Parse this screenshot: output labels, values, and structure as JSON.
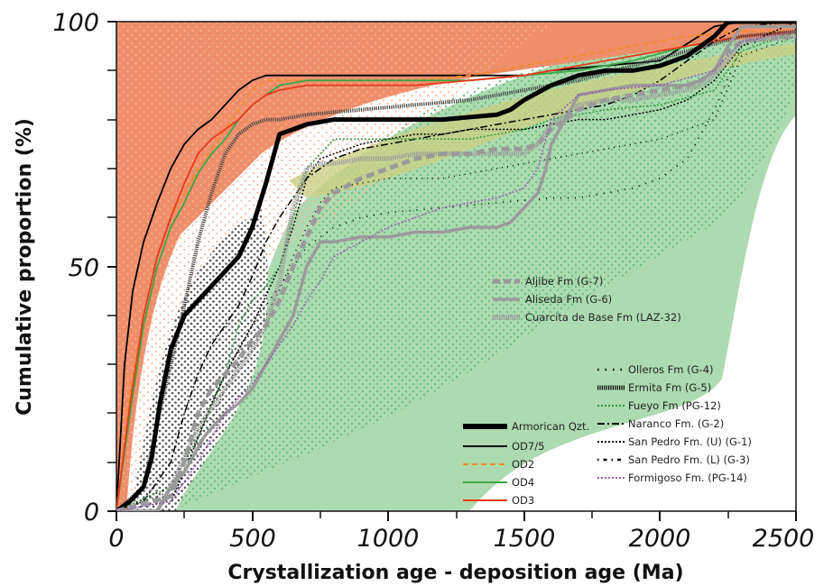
{
  "chart_data": {
    "type": "line",
    "xlabel": "Crystallization age - deposition age (Ma)",
    "ylabel": "Cumulative proportion (%)",
    "xlim": [
      0,
      2500
    ],
    "ylim": [
      0,
      100
    ],
    "x_ticks": [
      "0",
      "500",
      "1000",
      "1500",
      "2000",
      "2500"
    ],
    "y_ticks": [
      "0",
      "50",
      "100"
    ],
    "grid": false,
    "legend_position": "bottom-right (three blocks)",
    "legends": {
      "armorican": [
        {
          "name": "Armorican Qzt.",
          "color": "#000000",
          "style": "thick-solid"
        },
        {
          "name": "OD7/5",
          "color": "#000000",
          "style": "solid"
        },
        {
          "name": "OD2",
          "color": "#f28c28",
          "style": "dashed"
        },
        {
          "name": "OD4",
          "color": "#3aa845",
          "style": "solid"
        },
        {
          "name": "OD3",
          "color": "#e83a1c",
          "style": "solid"
        }
      ],
      "gray": [
        {
          "name": "Aljibe Fm (G-7)",
          "color": "#9a9a9a",
          "style": "thick-dashed"
        },
        {
          "name": "Aliseda Fm (G-6)",
          "color": "#9a9a9a",
          "style": "thick-solid"
        },
        {
          "name": "Cuarcita de Base Fm (LAZ-32)",
          "color": "#9a9a9a",
          "style": "hatched"
        }
      ],
      "cantabrian": [
        {
          "name": "Olleros Fm (G-4)",
          "color": "#000000",
          "style": "sparse-dotted"
        },
        {
          "name": "Ermita Fm (G-5)",
          "color": "#000000",
          "style": "hatched"
        },
        {
          "name": "Fueyo Fm (PG-12)",
          "color": "#3aa845",
          "style": "dotted"
        },
        {
          "name": "Naranco Fm. (G-2)",
          "color": "#000000",
          "style": "dash-dot"
        },
        {
          "name": "San Pedro Fm. (U) (G-1)",
          "color": "#000000",
          "style": "dotted"
        },
        {
          "name": "San Pedro Fm. (L) (G-3)",
          "color": "#000000",
          "style": "dot-dash"
        },
        {
          "name": "Formigoso Fm. (PG-14)",
          "color": "#9b59b6",
          "style": "dotted"
        }
      ]
    },
    "series": [
      {
        "name": "OD7/5",
        "color": "#000000",
        "width": 1.8,
        "dash": "",
        "x": [
          0,
          30,
          60,
          100,
          150,
          200,
          250,
          300,
          350,
          400,
          450,
          500,
          550,
          600,
          700,
          800,
          1000,
          1200,
          1400,
          1500,
          1600,
          1800,
          2000,
          2200,
          2300,
          2500
        ],
        "y": [
          0,
          30,
          45,
          55,
          63,
          70,
          75,
          78,
          80,
          83,
          86,
          88,
          89,
          89,
          89,
          89,
          89,
          89,
          89,
          89,
          90,
          91,
          92,
          99,
          100,
          100
        ]
      },
      {
        "name": "OD2",
        "color": "#f28c28",
        "width": 1.8,
        "dash": "6,4",
        "x": [
          0,
          50,
          100,
          150,
          200,
          250,
          300,
          350,
          400,
          450,
          500,
          550,
          600,
          700,
          900,
          1100,
          1300,
          1500,
          1700,
          1900,
          2100,
          2300,
          2500
        ],
        "y": [
          0,
          25,
          40,
          52,
          60,
          65,
          70,
          74,
          78,
          82,
          86,
          88,
          88,
          88,
          88,
          88,
          89,
          91,
          93,
          95,
          97,
          98,
          98
        ]
      },
      {
        "name": "OD4",
        "color": "#3aa845",
        "width": 1.8,
        "dash": "",
        "x": [
          0,
          50,
          100,
          150,
          200,
          250,
          300,
          350,
          400,
          450,
          500,
          550,
          600,
          700,
          900,
          1100,
          1300,
          1500,
          1700,
          1900,
          2100,
          2300,
          2500
        ],
        "y": [
          0,
          20,
          38,
          50,
          58,
          63,
          69,
          73,
          76,
          80,
          83,
          85,
          87,
          88,
          88,
          88,
          88,
          89,
          90,
          92,
          95,
          97,
          98
        ]
      },
      {
        "name": "OD3",
        "color": "#e83a1c",
        "width": 1.8,
        "dash": "",
        "x": [
          0,
          50,
          100,
          150,
          200,
          250,
          300,
          350,
          400,
          450,
          500,
          550,
          600,
          700,
          900,
          1100,
          1300,
          1500,
          1700,
          1900,
          2100,
          2300,
          2500
        ],
        "y": [
          0,
          22,
          40,
          52,
          60,
          67,
          73,
          76,
          78,
          80,
          83,
          85,
          86,
          87,
          87,
          87,
          88,
          89,
          91,
          93,
          95,
          97,
          98
        ]
      },
      {
        "name": "Ermita Fm (G-5)",
        "color": "#444444",
        "width": 4,
        "dash": "1.2,1.2",
        "x": [
          0,
          100,
          150,
          200,
          250,
          300,
          350,
          400,
          450,
          500,
          550,
          600,
          700,
          900,
          1100,
          1300,
          1500,
          1700,
          1900,
          2100,
          2300,
          2500
        ],
        "y": [
          0,
          5,
          18,
          30,
          42,
          55,
          65,
          73,
          77,
          79,
          80,
          80,
          81,
          82,
          83,
          84,
          86,
          88,
          91,
          94,
          97,
          98
        ]
      },
      {
        "name": "Armorican Qzt.",
        "color": "#000000",
        "width": 5,
        "dash": "",
        "x": [
          0,
          50,
          100,
          130,
          160,
          200,
          250,
          300,
          350,
          400,
          450,
          500,
          550,
          600,
          650,
          700,
          800,
          1000,
          1200,
          1400,
          1450,
          1500,
          1600,
          1700,
          1800,
          1900,
          2000,
          2100,
          2200,
          2250,
          2300,
          2500
        ],
        "y": [
          0,
          2,
          5,
          11,
          22,
          33,
          40,
          43,
          46,
          49,
          52,
          58,
          67,
          77,
          78,
          79,
          80,
          80,
          80,
          81,
          82,
          84,
          87,
          89,
          90,
          90,
          91,
          93,
          97,
          100,
          100,
          100
        ]
      },
      {
        "name": "Naranco Fm. (G-2)",
        "color": "#000000",
        "width": 1.5,
        "dash": "8,3,2,3",
        "x": [
          0,
          100,
          200,
          250,
          300,
          350,
          400,
          450,
          500,
          550,
          600,
          700,
          800,
          900,
          1000,
          1100,
          1200,
          1300,
          1400,
          1500,
          1600,
          1700,
          1800,
          1900,
          2000,
          2100,
          2200,
          2300,
          2500
        ],
        "y": [
          0,
          2,
          10,
          20,
          28,
          34,
          38,
          42,
          48,
          55,
          60,
          68,
          72,
          74,
          75,
          76,
          77,
          78,
          79,
          80,
          81,
          82,
          83,
          85,
          88,
          92,
          96,
          99,
          100
        ]
      },
      {
        "name": "San Pedro Fm. (U) (G-1)",
        "color": "#000000",
        "width": 1.5,
        "dash": "2,2",
        "x": [
          0,
          200,
          250,
          300,
          350,
          400,
          450,
          500,
          550,
          600,
          650,
          700,
          750,
          800,
          900,
          1000,
          1100,
          1200,
          1300,
          1400,
          1500,
          1600,
          1700,
          1800,
          1900,
          2000,
          2100,
          2200,
          2300,
          2500
        ],
        "y": [
          0,
          2,
          8,
          15,
          22,
          28,
          33,
          38,
          44,
          50,
          58,
          68,
          72,
          73,
          75,
          76,
          77,
          77,
          78,
          78,
          78,
          79,
          80,
          80,
          81,
          82,
          84,
          88,
          95,
          100
        ]
      },
      {
        "name": "Fueyo Fm (PG-12)",
        "color": "#2e9a3d",
        "width": 1.5,
        "dash": "2,2",
        "x": [
          0,
          200,
          300,
          400,
          450,
          500,
          550,
          600,
          650,
          700,
          800,
          900,
          1000,
          1100,
          1200,
          1300,
          1400,
          1500,
          1550,
          1600,
          1700,
          1800,
          2000,
          2200,
          2300,
          2500
        ],
        "y": [
          0,
          5,
          15,
          28,
          38,
          43,
          46,
          50,
          60,
          70,
          76,
          76,
          76,
          76,
          76,
          76,
          77,
          78,
          79,
          80,
          81,
          82,
          83,
          86,
          94,
          98
        ]
      },
      {
        "name": "San Pedro Fm. (L) (G-3)",
        "color": "#000000",
        "width": 1.5,
        "dash": "1,5",
        "x": [
          0,
          200,
          300,
          400,
          500,
          600,
          650,
          700,
          750,
          800,
          900,
          1000,
          1100,
          1200,
          1300,
          1400,
          1500,
          1600,
          1700,
          1800,
          2000,
          2200,
          2300,
          2500
        ],
        "y": [
          0,
          4,
          12,
          25,
          35,
          45,
          52,
          58,
          63,
          66,
          67,
          68,
          68,
          68,
          69,
          70,
          71,
          72,
          73,
          74,
          76,
          80,
          93,
          97
        ]
      },
      {
        "name": "Olleros Fm (G-4)",
        "color": "#000000",
        "width": 1.8,
        "dash": "1,7",
        "x": [
          0,
          200,
          300,
          400,
          500,
          600,
          700,
          800,
          900,
          1000,
          1200,
          1400,
          1600,
          1700,
          1800,
          1900,
          2000,
          2100,
          2200,
          2300,
          2500
        ],
        "y": [
          0,
          5,
          15,
          28,
          38,
          46,
          54,
          58,
          60,
          61,
          62,
          63,
          64,
          64,
          65,
          66,
          68,
          72,
          82,
          95,
          98
        ]
      },
      {
        "name": "Cuarcita de Base Fm (LAZ-32)",
        "color": "#9a9a9a",
        "width": 5,
        "dash": "1.2,1.2",
        "x": [
          0,
          150,
          200,
          300,
          400,
          500,
          550,
          600,
          650,
          700,
          750,
          800,
          900,
          1000,
          1100,
          1200,
          1300,
          1400,
          1500,
          1550,
          1600,
          1700,
          1800,
          1900,
          2000,
          2100,
          2150,
          2200,
          2250,
          2300,
          2500
        ],
        "y": [
          0,
          0,
          5,
          17,
          25,
          33,
          38,
          47,
          62,
          70,
          71,
          71,
          72,
          72,
          73,
          73,
          73,
          73,
          73,
          75,
          79,
          83,
          84,
          84,
          85,
          86,
          87,
          89,
          92,
          96,
          97
        ]
      },
      {
        "name": "Aljibe Fm (G-7)",
        "color": "#9a9a9a",
        "width": 5,
        "dash": "9,5",
        "x": [
          0,
          200,
          250,
          300,
          350,
          400,
          450,
          500,
          550,
          600,
          650,
          700,
          750,
          800,
          900,
          1000,
          1100,
          1200,
          1300,
          1400,
          1500,
          1550,
          1600,
          1700,
          1800,
          1900,
          2000,
          2100,
          2150,
          2200,
          2250,
          2300,
          2500
        ],
        "y": [
          0,
          3,
          10,
          20,
          25,
          28,
          31,
          35,
          38,
          43,
          50,
          56,
          62,
          65,
          68,
          70,
          72,
          73,
          73,
          74,
          74,
          75,
          78,
          82,
          84,
          85,
          86,
          87,
          88,
          90,
          94,
          96,
          97
        ]
      },
      {
        "name": "Aliseda Fm (G-6)",
        "color": "#9a9a9a",
        "width": 3.5,
        "dash": "",
        "x": [
          0,
          150,
          200,
          250,
          300,
          320,
          350,
          400,
          450,
          500,
          550,
          600,
          650,
          700,
          720,
          750,
          800,
          900,
          1000,
          1100,
          1200,
          1300,
          1400,
          1450,
          1500,
          1550,
          1580,
          1600,
          1650,
          1700,
          1800,
          1900,
          2000,
          2100,
          2150,
          2200,
          2250,
          2300,
          2500
        ],
        "y": [
          0,
          0,
          5,
          8,
          13,
          15,
          17,
          20,
          22,
          25,
          30,
          35,
          40,
          50,
          52,
          55,
          55,
          56,
          56,
          57,
          57,
          58,
          58,
          59,
          62,
          65,
          70,
          75,
          80,
          85,
          86,
          87,
          87,
          87,
          88,
          90,
          95,
          99,
          99
        ]
      },
      {
        "name": "Formigoso Fm. (PG-14)",
        "color": "#9b59b6",
        "width": 1.5,
        "dash": "2,2",
        "x": [
          0,
          200,
          300,
          400,
          500,
          550,
          600,
          650,
          700,
          750,
          800,
          900,
          1000,
          1100,
          1200,
          1300,
          1400,
          1500,
          1550,
          1600,
          1700,
          1800,
          2000,
          2200,
          2300,
          2500
        ],
        "y": [
          0,
          2,
          10,
          20,
          26,
          30,
          34,
          38,
          43,
          47,
          52,
          55,
          58,
          60,
          62,
          63,
          64,
          66,
          70,
          80,
          85,
          86,
          87,
          90,
          96,
          98
        ]
      }
    ]
  }
}
